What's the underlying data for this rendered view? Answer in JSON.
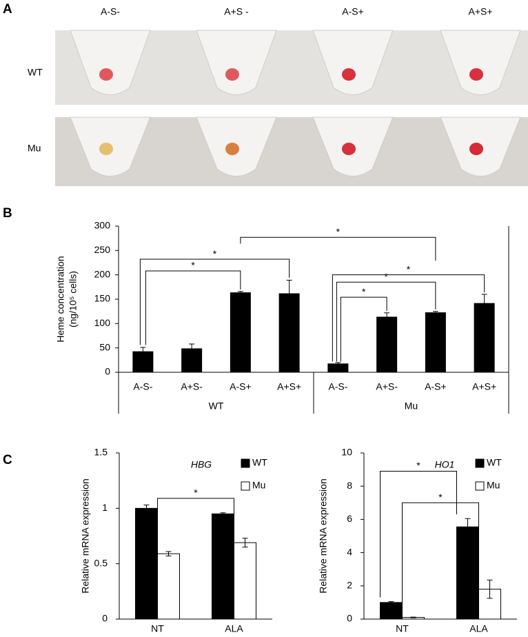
{
  "panel_labels": [
    "A",
    "B",
    "C"
  ],
  "photo": {
    "columns": [
      "A-S-",
      "A+S -",
      "A-S+",
      "A+S+"
    ],
    "rows": [
      "WT",
      "Mu"
    ]
  },
  "chart_data": [
    {
      "type": "bar",
      "ylabel": [
        "Heme concentration",
        "(ng/10⁵ cells)"
      ],
      "categories": [
        "A-S-",
        "A+S-",
        "A-S+",
        "A+S+",
        "A-S-",
        "A+S-",
        "A-S+",
        "A+S+"
      ],
      "groups": [
        "WT",
        "Mu"
      ],
      "values": [
        43,
        49,
        164,
        162,
        18,
        114,
        123,
        142
      ],
      "errors": [
        8,
        9,
        2,
        27,
        2,
        8,
        2,
        18
      ],
      "color": "#000000",
      "ylim": [
        0,
        300
      ],
      "yticks": [
        0,
        50,
        100,
        150,
        200,
        250,
        300
      ],
      "annotations": [
        "*",
        "*",
        "*",
        "*",
        "*",
        "*"
      ]
    },
    {
      "type": "grouped_bar",
      "title": "HBG",
      "ylabel": "Relative mRNA expression",
      "categories": [
        "NT",
        "ALA"
      ],
      "series": [
        {
          "name": "WT",
          "color": "#000000",
          "values": [
            1.0,
            0.95
          ],
          "errors": [
            0.03,
            0.01
          ]
        },
        {
          "name": "Mu",
          "color": "#ffffff",
          "values": [
            0.59,
            0.69
          ],
          "errors": [
            0.02,
            0.04
          ]
        }
      ],
      "ylim": [
        0,
        1.5
      ],
      "yticks": [
        0,
        0.5,
        1,
        1.5
      ],
      "legend": "upper right",
      "annotations": [
        "*"
      ]
    },
    {
      "type": "grouped_bar",
      "title": "HO1",
      "ylabel": "Relative mRNA expression",
      "categories": [
        "NT",
        "ALA"
      ],
      "series": [
        {
          "name": "WT",
          "color": "#000000",
          "values": [
            1.0,
            5.55
          ],
          "errors": [
            0.05,
            0.5
          ]
        },
        {
          "name": "Mu",
          "color": "#ffffff",
          "values": [
            0.1,
            1.8
          ],
          "errors": [
            0.02,
            0.55
          ]
        }
      ],
      "ylim": [
        0,
        10
      ],
      "yticks": [
        0,
        2,
        4,
        6,
        8,
        10
      ],
      "legend": "upper right",
      "annotations": [
        "*",
        "*"
      ]
    }
  ]
}
